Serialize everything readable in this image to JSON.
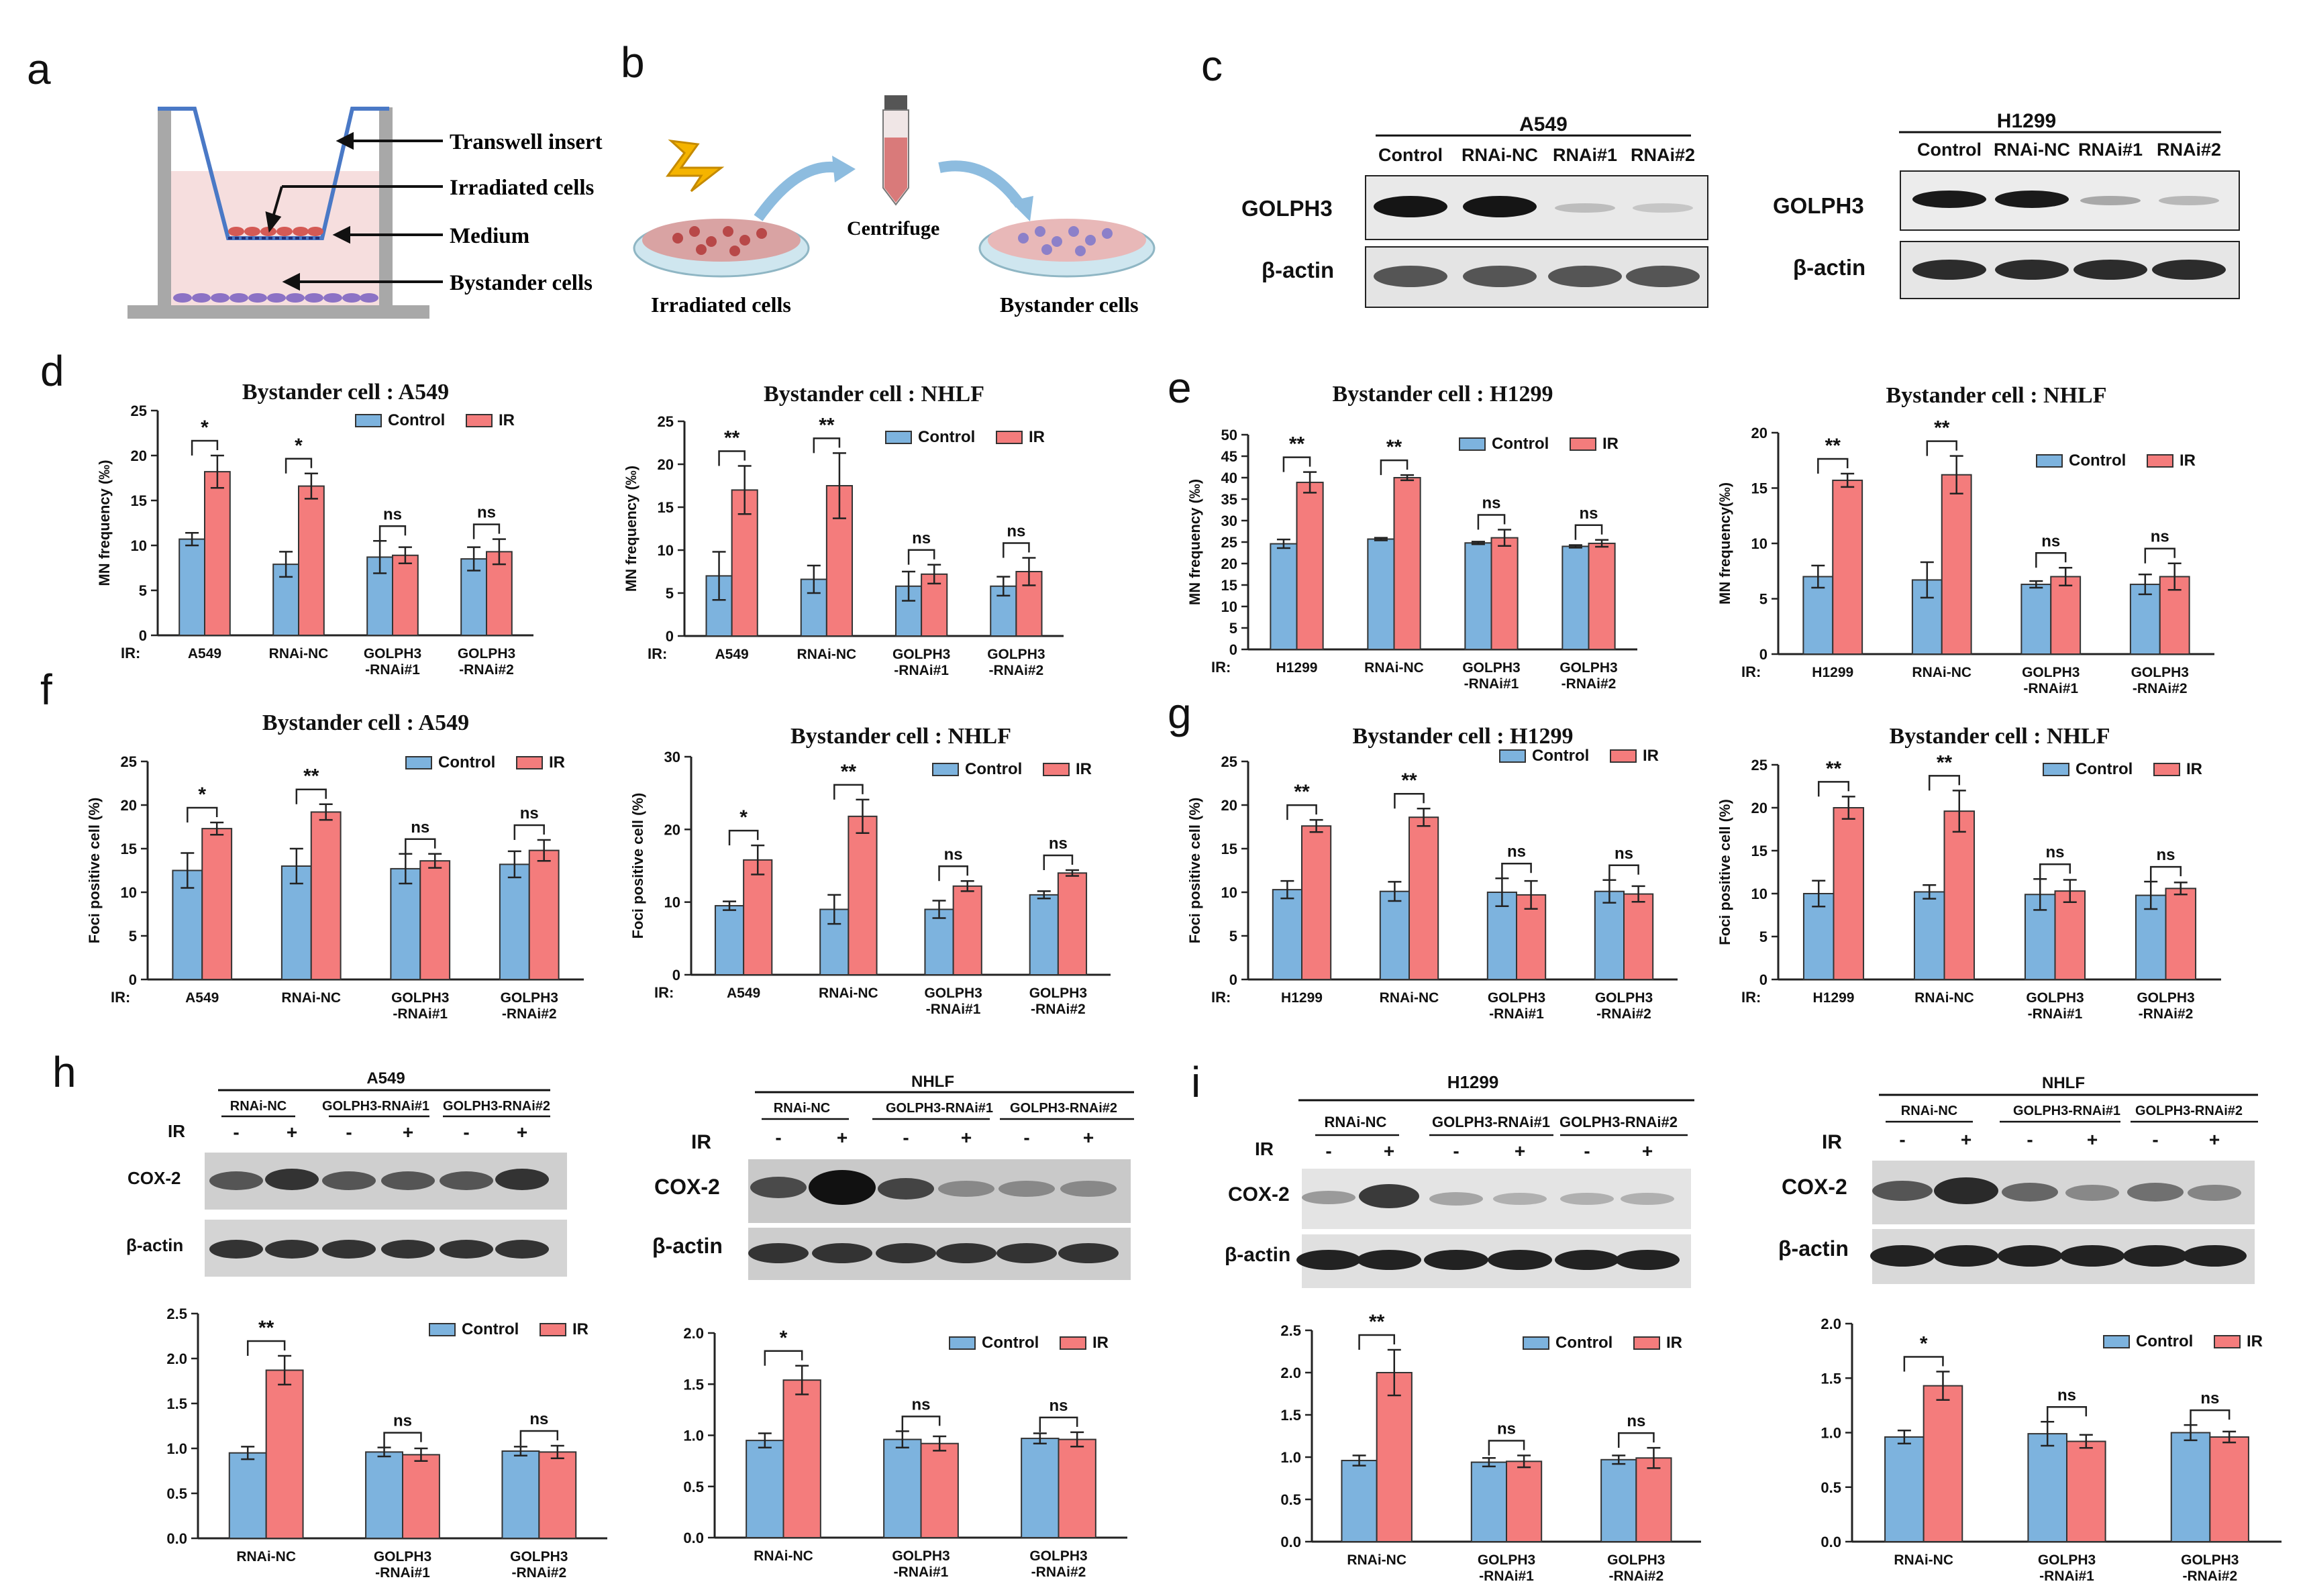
{
  "colors": {
    "control": "#7db3de",
    "ir": "#f47c7c",
    "bar_stroke": "#333333",
    "schem_blue": "#4a79c6",
    "schem_red": "#d45a55",
    "schem_purple": "#8c72c5"
  },
  "panels": {
    "a": {
      "letter": "a",
      "labels": [
        "Transwell insert",
        "Irradiated cells",
        "Medium",
        "Bystander cells"
      ]
    },
    "b": {
      "letter": "b",
      "labels": [
        "Centrifuge",
        "Irradiated cells",
        "Bystander cells"
      ]
    },
    "c": {
      "letter": "c",
      "blots": [
        {
          "cell": "A549",
          "lanes": [
            "Control",
            "RNAi-NC",
            "RNAi#1",
            "RNAi#2"
          ],
          "rows": [
            "GOLPH3",
            "β-actin"
          ]
        },
        {
          "cell": "H1299",
          "lanes": [
            "Control",
            "RNAi-NC",
            "RNAi#1",
            "RNAi#2"
          ],
          "rows": [
            "GOLPH3",
            "β-actin"
          ]
        }
      ]
    },
    "d": {
      "letter": "d"
    },
    "e": {
      "letter": "e"
    },
    "f": {
      "letter": "f"
    },
    "g": {
      "letter": "g"
    },
    "h": {
      "letter": "h",
      "blots": [
        {
          "cell": "A549",
          "groups": [
            "RNAi-NC",
            "GOLPH3-RNAi#1",
            "GOLPH3-RNAi#2"
          ],
          "ir_label": "IR",
          "signs": [
            "-",
            "+",
            "-",
            "+",
            "-",
            "+"
          ],
          "rows": [
            "COX-2",
            "β-actin"
          ]
        },
        {
          "cell": "NHLF",
          "groups": [
            "RNAi-NC",
            "GOLPH3-RNAi#1",
            "GOLPH3-RNAi#2"
          ],
          "ir_label": "IR",
          "signs": [
            "-",
            "+",
            "-",
            "+",
            "-",
            "+"
          ],
          "rows": [
            "COX-2",
            "β-actin"
          ]
        }
      ]
    },
    "i": {
      "letter": "i",
      "blots": [
        {
          "cell": "H1299",
          "groups": [
            "RNAi-NC",
            "GOLPH3-RNAi#1",
            "GOLPH3-RNAi#2"
          ],
          "ir_label": "IR",
          "signs": [
            "-",
            "+",
            "-",
            "+",
            "-",
            "+"
          ],
          "rows": [
            "COX-2",
            "β-actin"
          ]
        },
        {
          "cell": "NHLF",
          "groups": [
            "RNAi-NC",
            "GOLPH3-RNAi#1",
            "GOLPH3-RNAi#2"
          ],
          "ir_label": "IR",
          "signs": [
            "-",
            "+",
            "-",
            "+",
            "-",
            "+"
          ],
          "rows": [
            "COX-2",
            "β-actin"
          ]
        }
      ]
    }
  },
  "chart_data": [
    {
      "id": "d1",
      "type": "bar",
      "title": "Bystander cell : A549",
      "ylabel": "MN frequency (‰)",
      "ylim": [
        0,
        25
      ],
      "yticks": [
        0,
        5,
        10,
        15,
        20,
        25
      ],
      "ir_label": "IR:",
      "categories": [
        [
          "A549"
        ],
        [
          "RNAi-NC"
        ],
        [
          "GOLPH3",
          "-RNAi#1"
        ],
        [
          "GOLPH3",
          "-RNAi#2"
        ]
      ],
      "series": [
        {
          "name": "Control",
          "values": [
            10.7,
            7.9,
            8.7,
            8.5
          ],
          "errors": [
            0.7,
            1.4,
            1.8,
            1.3
          ]
        },
        {
          "name": "IR",
          "values": [
            18.2,
            16.6,
            8.9,
            9.3
          ],
          "errors": [
            1.8,
            1.4,
            0.9,
            1.4
          ]
        }
      ],
      "significance": [
        "*",
        "*",
        "ns",
        "ns"
      ]
    },
    {
      "id": "d2",
      "type": "bar",
      "title": "Bystander cell : NHLF",
      "ylabel": "MN frequency (‰)",
      "ylim": [
        0,
        25
      ],
      "yticks": [
        0,
        5,
        10,
        15,
        20,
        25
      ],
      "ir_label": "IR:",
      "categories": [
        [
          "A549"
        ],
        [
          "RNAi-NC"
        ],
        [
          "GOLPH3",
          "-RNAi#1"
        ],
        [
          "GOLPH3",
          "-RNAi#2"
        ]
      ],
      "series": [
        {
          "name": "Control",
          "values": [
            7.0,
            6.6,
            5.8,
            5.8
          ],
          "errors": [
            2.8,
            1.6,
            1.7,
            1.1
          ]
        },
        {
          "name": "IR",
          "values": [
            17.0,
            17.5,
            7.2,
            7.5
          ],
          "errors": [
            2.8,
            3.8,
            1.1,
            1.6
          ]
        }
      ],
      "significance": [
        "**",
        "**",
        "ns",
        "ns"
      ]
    },
    {
      "id": "e1",
      "type": "bar",
      "title": "Bystander cell : H1299",
      "ylabel": "MN frequency (‰)",
      "ylim": [
        0,
        50
      ],
      "yticks": [
        0,
        5,
        10,
        15,
        20,
        25,
        30,
        35,
        40,
        45,
        50
      ],
      "ir_label": "IR:",
      "categories": [
        [
          "H1299"
        ],
        [
          "RNAi-NC"
        ],
        [
          "GOLPH3",
          "-RNAi#1"
        ],
        [
          "GOLPH3",
          "-RNAi#2"
        ]
      ],
      "series": [
        {
          "name": "Control",
          "values": [
            24.6,
            25.7,
            24.8,
            24.0
          ],
          "errors": [
            1.0,
            0.3,
            0.3,
            0.3
          ]
        },
        {
          "name": "IR",
          "values": [
            38.9,
            40.0,
            26.0,
            24.7
          ],
          "errors": [
            2.4,
            0.6,
            1.9,
            0.8
          ]
        }
      ],
      "significance": [
        "**",
        "**",
        "ns",
        "ns"
      ]
    },
    {
      "id": "e2",
      "type": "bar",
      "title": "Bystander cell : NHLF",
      "ylabel": "MN frequency(‰)",
      "ylim": [
        0,
        20
      ],
      "yticks": [
        0,
        5,
        10,
        15,
        20
      ],
      "ir_label": "IR:",
      "categories": [
        [
          "H1299"
        ],
        [
          "RNAi-NC"
        ],
        [
          "GOLPH3",
          "-RNAi#1"
        ],
        [
          "GOLPH3",
          "-RNAi#2"
        ]
      ],
      "series": [
        {
          "name": "Control",
          "values": [
            7.0,
            6.7,
            6.3,
            6.3
          ],
          "errors": [
            1.0,
            1.6,
            0.3,
            0.9
          ]
        },
        {
          "name": "IR",
          "values": [
            15.7,
            16.2,
            7.0,
            7.0
          ],
          "errors": [
            0.6,
            1.7,
            0.8,
            1.2
          ]
        }
      ],
      "significance": [
        "**",
        "**",
        "ns",
        "ns"
      ]
    },
    {
      "id": "f1",
      "type": "bar",
      "title": "Bystander cell : A549",
      "ylabel": "Foci positive cell (%)",
      "ylim": [
        0,
        25
      ],
      "yticks": [
        0,
        5,
        10,
        15,
        20,
        25
      ],
      "ir_label": "IR:",
      "categories": [
        [
          "A549"
        ],
        [
          "RNAi-NC"
        ],
        [
          "GOLPH3",
          "-RNAi#1"
        ],
        [
          "GOLPH3",
          "-RNAi#2"
        ]
      ],
      "series": [
        {
          "name": "Control",
          "values": [
            12.5,
            13.0,
            12.7,
            13.2
          ],
          "errors": [
            2.0,
            2.0,
            1.7,
            1.5
          ]
        },
        {
          "name": "IR",
          "values": [
            17.3,
            19.2,
            13.6,
            14.8
          ],
          "errors": [
            0.7,
            0.9,
            0.8,
            1.2
          ]
        }
      ],
      "significance": [
        "*",
        "**",
        "ns",
        "ns"
      ]
    },
    {
      "id": "f2",
      "type": "bar",
      "title": "Bystander cell : NHLF",
      "ylabel": "Foci positive cell (%)",
      "ylim": [
        0,
        30
      ],
      "yticks": [
        0,
        10,
        20,
        30
      ],
      "ir_label": "IR:",
      "categories": [
        [
          "A549"
        ],
        [
          "RNAi-NC"
        ],
        [
          "GOLPH3",
          "-RNAi#1"
        ],
        [
          "GOLPH3",
          "-RNAi#2"
        ]
      ],
      "series": [
        {
          "name": "Control",
          "values": [
            9.5,
            9.0,
            9.0,
            11.0
          ],
          "errors": [
            0.6,
            2.0,
            1.2,
            0.5
          ]
        },
        {
          "name": "IR",
          "values": [
            15.8,
            21.8,
            12.2,
            14.0
          ],
          "errors": [
            2.0,
            2.3,
            0.7,
            0.4
          ]
        }
      ],
      "significance": [
        "*",
        "**",
        "ns",
        "ns"
      ]
    },
    {
      "id": "g1",
      "type": "bar",
      "title": "Bystander cell : H1299",
      "ylabel": "Foci positive cell (%)",
      "ylim": [
        0,
        25
      ],
      "yticks": [
        0,
        5,
        10,
        15,
        20,
        25
      ],
      "ir_label": "IR:",
      "categories": [
        [
          "H1299"
        ],
        [
          "RNAi-NC"
        ],
        [
          "GOLPH3",
          "-RNAi#1"
        ],
        [
          "GOLPH3",
          "-RNAi#2"
        ]
      ],
      "series": [
        {
          "name": "Control",
          "values": [
            10.3,
            10.1,
            10.0,
            10.1
          ],
          "errors": [
            1.0,
            1.1,
            1.6,
            1.3
          ]
        },
        {
          "name": "IR",
          "values": [
            17.6,
            18.6,
            9.7,
            9.8
          ],
          "errors": [
            0.7,
            1.0,
            1.6,
            0.9
          ]
        }
      ],
      "significance": [
        "**",
        "**",
        "ns",
        "ns"
      ]
    },
    {
      "id": "g2",
      "type": "bar",
      "title": "Bystander cell : NHLF",
      "ylabel": "Foci positive cell (%)",
      "ylim": [
        0,
        25
      ],
      "yticks": [
        0,
        5,
        10,
        15,
        20,
        25
      ],
      "ir_label": "IR:",
      "categories": [
        [
          "H1299"
        ],
        [
          "RNAi-NC"
        ],
        [
          "GOLPH3",
          "-RNAi#1"
        ],
        [
          "GOLPH3",
          "-RNAi#2"
        ]
      ],
      "series": [
        {
          "name": "Control",
          "values": [
            10.0,
            10.2,
            9.9,
            9.8
          ],
          "errors": [
            1.5,
            0.8,
            1.8,
            1.6
          ]
        },
        {
          "name": "IR",
          "values": [
            20.0,
            19.6,
            10.3,
            10.6
          ],
          "errors": [
            1.3,
            2.4,
            1.3,
            0.7
          ]
        }
      ],
      "significance": [
        "**",
        "**",
        "ns",
        "ns"
      ]
    },
    {
      "id": "h1",
      "type": "bar",
      "title": "",
      "ylabel": "",
      "ylim": [
        0,
        2.5
      ],
      "yticks": [
        0.0,
        0.5,
        1.0,
        1.5,
        2.0,
        2.5
      ],
      "ir_label": "",
      "categories": [
        [
          "RNAi-NC"
        ],
        [
          "GOLPH3",
          "-RNAi#1"
        ],
        [
          "GOLPH3",
          "-RNAi#2"
        ]
      ],
      "series": [
        {
          "name": "Control",
          "values": [
            0.95,
            0.96,
            0.97
          ],
          "errors": [
            0.07,
            0.05,
            0.05
          ]
        },
        {
          "name": "IR",
          "values": [
            1.87,
            0.93,
            0.96
          ],
          "errors": [
            0.16,
            0.07,
            0.07
          ]
        }
      ],
      "significance": [
        "**",
        "ns",
        "ns"
      ]
    },
    {
      "id": "h2",
      "type": "bar",
      "title": "",
      "ylabel": "",
      "ylim": [
        0,
        2.0
      ],
      "yticks": [
        0.0,
        0.5,
        1.0,
        1.5,
        2.0
      ],
      "ir_label": "",
      "categories": [
        [
          "RNAi-NC"
        ],
        [
          "GOLPH3",
          "-RNAi#1"
        ],
        [
          "GOLPH3",
          "-RNAi#2"
        ]
      ],
      "series": [
        {
          "name": "Control",
          "values": [
            0.95,
            0.96,
            0.97
          ],
          "errors": [
            0.07,
            0.08,
            0.05
          ]
        },
        {
          "name": "IR",
          "values": [
            1.54,
            0.92,
            0.96
          ],
          "errors": [
            0.14,
            0.07,
            0.07
          ]
        }
      ],
      "significance": [
        "*",
        "ns",
        "ns"
      ]
    },
    {
      "id": "i1",
      "type": "bar",
      "title": "",
      "ylabel": "",
      "ylim": [
        0,
        2.5
      ],
      "yticks": [
        0.0,
        0.5,
        1.0,
        1.5,
        2.0,
        2.5
      ],
      "ir_label": "",
      "categories": [
        [
          "RNAi-NC"
        ],
        [
          "GOLPH3",
          "-RNAi#1"
        ],
        [
          "GOLPH3",
          "-RNAi#2"
        ]
      ],
      "series": [
        {
          "name": "Control",
          "values": [
            0.96,
            0.94,
            0.97
          ],
          "errors": [
            0.06,
            0.05,
            0.05
          ]
        },
        {
          "name": "IR",
          "values": [
            2.0,
            0.95,
            0.99
          ],
          "errors": [
            0.27,
            0.07,
            0.12
          ]
        }
      ],
      "significance": [
        "**",
        "ns",
        "ns"
      ]
    },
    {
      "id": "i2",
      "type": "bar",
      "title": "",
      "ylabel": "",
      "ylim": [
        0,
        2.0
      ],
      "yticks": [
        0.0,
        0.5,
        1.0,
        1.5,
        2.0
      ],
      "ir_label": "",
      "categories": [
        [
          "RNAi-NC"
        ],
        [
          "GOLPH3",
          "-RNAi#1"
        ],
        [
          "GOLPH3",
          "-RNAi#2"
        ]
      ],
      "series": [
        {
          "name": "Control",
          "values": [
            0.96,
            0.99,
            1.0
          ],
          "errors": [
            0.06,
            0.11,
            0.07
          ]
        },
        {
          "name": "IR",
          "values": [
            1.43,
            0.92,
            0.96
          ],
          "errors": [
            0.13,
            0.06,
            0.05
          ]
        }
      ],
      "significance": [
        "*",
        "ns",
        "ns"
      ]
    }
  ]
}
